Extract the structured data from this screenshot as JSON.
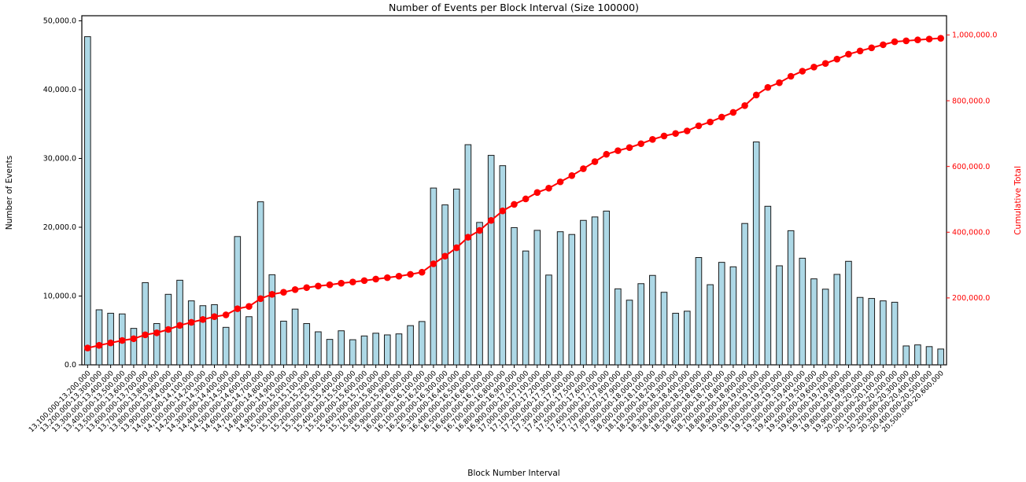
{
  "figure": {
    "title": "Number of Events per Block Interval (Size 100000)",
    "xlabel": "Block Number Interval",
    "ylabel_left": "Number of Events",
    "ylabel_right": "Cumulative Total"
  },
  "colors": {
    "bar_fill": "#ADD8E6",
    "bar_edge": "#1a1a1a",
    "line": "#ff0000",
    "right_axis_text": "#ff0000",
    "left_axis_text": "#000000",
    "spine": "#000000",
    "background": "#ffffff"
  },
  "axes": {
    "left_tick_labels": [
      "0.0",
      "10,000.0",
      "20,000.0",
      "30,000.0",
      "40,000.0",
      "50,000.0"
    ],
    "left_tick_values": [
      0,
      10000,
      20000,
      30000,
      40000,
      50000
    ],
    "right_tick_labels": [
      "200,000.0",
      "400,000.0",
      "600,000.0",
      "800,000.0",
      "1,000,000.0"
    ],
    "right_tick_values": [
      200000,
      400000,
      600000,
      800000,
      1000000
    ],
    "ylim_left": [
      0,
      50000
    ],
    "ylim_right": [
      0,
      1000000
    ],
    "grid": false,
    "x_tick_rotation_deg": 45
  },
  "chart_data": {
    "type": "bar",
    "title": "Number of Events per Block Interval (Size 100000)",
    "xlabel": "Block Number Interval",
    "ylabel": "Number of Events",
    "ylabel_secondary": "Cumulative Total",
    "ylim": [
      0,
      50000
    ],
    "ylim_secondary": [
      0,
      1000000
    ],
    "legend": "none",
    "categories": [
      "13,100,000-13,200,000",
      "13,200,000-13,300,000",
      "13,300,000-13,400,000",
      "13,400,000-13,500,000",
      "13,500,000-13,600,000",
      "13,600,000-13,700,000",
      "13,700,000-13,800,000",
      "13,800,000-13,900,000",
      "13,900,000-14,000,000",
      "14,000,000-14,100,000",
      "14,100,000-14,200,000",
      "14,200,000-14,300,000",
      "14,300,000-14,400,000",
      "14,400,000-14,500,000",
      "14,500,000-14,600,000",
      "14,600,000-14,700,000",
      "14,700,000-14,800,000",
      "14,800,000-14,900,000",
      "14,900,000-15,000,000",
      "15,000,000-15,100,000",
      "15,100,000-15,200,000",
      "15,200,000-15,300,000",
      "15,300,000-15,400,000",
      "15,400,000-15,500,000",
      "15,500,000-15,600,000",
      "15,600,000-15,700,000",
      "15,700,000-15,800,000",
      "15,800,000-15,900,000",
      "15,900,000-16,000,000",
      "16,000,000-16,100,000",
      "16,100,000-16,200,000",
      "16,200,000-16,300,000",
      "16,300,000-16,400,000",
      "16,400,000-16,500,000",
      "16,500,000-16,600,000",
      "16,600,000-16,700,000",
      "16,700,000-16,800,000",
      "16,800,000-16,900,000",
      "16,900,000-17,000,000",
      "17,000,000-17,100,000",
      "17,100,000-17,200,000",
      "17,200,000-17,300,000",
      "17,300,000-17,400,000",
      "17,400,000-17,500,000",
      "17,500,000-17,600,000",
      "17,600,000-17,700,000",
      "17,700,000-17,800,000",
      "17,800,000-17,900,000",
      "17,900,000-18,000,000",
      "18,000,000-18,100,000",
      "18,100,000-18,200,000",
      "18,200,000-18,300,000",
      "18,300,000-18,400,000",
      "18,400,000-18,500,000",
      "18,500,000-18,600,000",
      "18,600,000-18,700,000",
      "18,700,000-18,800,000",
      "18,800,000-18,900,000",
      "18,900,000-19,000,000",
      "19,000,000-19,100,000",
      "19,100,000-19,200,000",
      "19,200,000-19,300,000",
      "19,300,000-19,400,000",
      "19,400,000-19,500,000",
      "19,500,000-19,600,000",
      "19,600,000-19,700,000",
      "19,700,000-19,800,000",
      "19,800,000-19,900,000",
      "19,900,000-20,000,000",
      "20,000,000-20,100,000",
      "20,100,000-20,200,000",
      "20,200,000-20,300,000",
      "20,300,000-20,400,000",
      "20,400,000-20,500,000",
      "20,500,000-20,600,000"
    ],
    "series": [
      {
        "name": "Number of Events",
        "type": "bar",
        "axis": "left",
        "values": [
          47700,
          8000,
          7500,
          7400,
          5300,
          11950,
          6000,
          10250,
          12300,
          9300,
          8600,
          8750,
          5450,
          18650,
          7000,
          23700,
          13100,
          6350,
          8100,
          6000,
          4800,
          3700,
          4950,
          3650,
          4200,
          4600,
          4350,
          4500,
          5700,
          6300,
          25700,
          23250,
          25550,
          32000,
          20700,
          30450,
          28950,
          19950,
          16550,
          19550,
          13050,
          19350,
          18950,
          21000,
          21500,
          22350,
          11050,
          9400,
          11800,
          13000,
          10550,
          7500,
          7800,
          15600,
          11650,
          14900,
          14250,
          20550,
          32400,
          23050,
          14400,
          19500,
          15500,
          12500,
          11000,
          13150,
          15050,
          9800,
          9650,
          9300,
          9100,
          2750,
          2900,
          2650,
          2300
        ]
      },
      {
        "name": "Cumulative Total",
        "type": "line",
        "axis": "right",
        "values": [
          47700,
          55700,
          63200,
          70600,
          75900,
          87850,
          93850,
          104100,
          116400,
          125700,
          134300,
          143050,
          148500,
          167150,
          174150,
          197850,
          210950,
          217300,
          225400,
          231400,
          236200,
          239900,
          244850,
          248500,
          252700,
          257300,
          261650,
          266150,
          271850,
          278150,
          303850,
          327100,
          352650,
          384650,
          405350,
          435800,
          464750,
          484700,
          501250,
          520800,
          533850,
          553200,
          572150,
          593150,
          614650,
          637000,
          648050,
          657450,
          669250,
          682250,
          692800,
          700300,
          708100,
          723700,
          735350,
          750250,
          764500,
          785050,
          817450,
          840500,
          854900,
          874400,
          889900,
          902400,
          913400,
          926550,
          941600,
          951400,
          961050,
          970350,
          979450,
          982200,
          985100,
          987750,
          990050
        ]
      }
    ]
  }
}
